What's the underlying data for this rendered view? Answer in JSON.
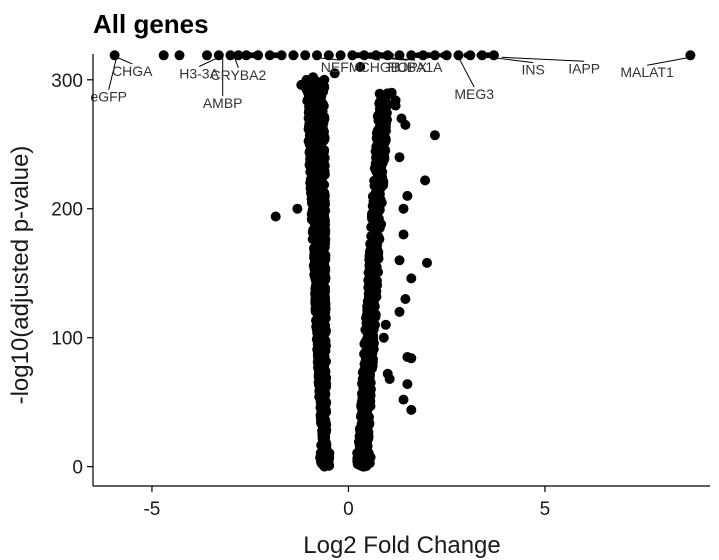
{
  "chart_data": {
    "type": "scatter",
    "title": "All genes",
    "xlabel": "Log2 Fold Change",
    "ylabel": "-log10(adjusted p-value)",
    "xlim": [
      -6.5,
      9.2
    ],
    "ylim": [
      -15,
      320
    ],
    "xticks": [
      -5,
      0,
      5
    ],
    "yticks": [
      0,
      100,
      200,
      300
    ],
    "grid": false,
    "point_color": "#000000",
    "cap_value": 319,
    "labeled_genes": [
      {
        "gene": "eGFP",
        "x": -5.9,
        "y": 319,
        "label_x": -6.1,
        "label_y": 283
      },
      {
        "gene": "CHGA",
        "x": -5.9,
        "y": 319,
        "label_x": -5.5,
        "label_y": 303
      },
      {
        "gene": "H3-3A",
        "x": -3.3,
        "y": 319,
        "label_x": -3.8,
        "label_y": 301
      },
      {
        "gene": "AMBP",
        "x": -3.2,
        "y": 319,
        "label_x": -3.2,
        "label_y": 278
      },
      {
        "gene": "CRYBA2",
        "x": -2.9,
        "y": 319,
        "label_x": -2.8,
        "label_y": 300
      },
      {
        "gene": "NEFM",
        "x": -0.9,
        "y": 319,
        "label_x": -0.2,
        "label_y": 306
      },
      {
        "gene": "CHGB",
        "x": 0.4,
        "y": 319,
        "label_x": 0.8,
        "label_y": 306
      },
      {
        "gene": "HOPX",
        "x": 0.6,
        "y": 319,
        "label_x": 1.5,
        "label_y": 306
      },
      {
        "gene": "TUBA1A",
        "x": 0.9,
        "y": 319,
        "label_x": 1.7,
        "label_y": 306
      },
      {
        "gene": "MEG3",
        "x": 2.8,
        "y": 319,
        "label_x": 3.2,
        "label_y": 285
      },
      {
        "gene": "INS",
        "x": 3.6,
        "y": 319,
        "label_x": 4.7,
        "label_y": 304
      },
      {
        "gene": "IAPP",
        "x": 3.9,
        "y": 319,
        "label_x": 6.0,
        "label_y": 305
      },
      {
        "gene": "MALAT1",
        "x": 8.7,
        "y": 319,
        "label_x": 7.6,
        "label_y": 302
      }
    ],
    "outliers": [
      [
        -1.85,
        194
      ],
      [
        -1.3,
        200
      ],
      [
        -1.2,
        296
      ],
      [
        -1.0,
        279
      ],
      [
        -0.9,
        302
      ],
      [
        1.95,
        222
      ],
      [
        2.2,
        257
      ],
      [
        1.2,
        284
      ],
      [
        1.35,
        270
      ],
      [
        1.45,
        265
      ],
      [
        1.3,
        240
      ],
      [
        1.5,
        210
      ],
      [
        1.4,
        200
      ],
      [
        1.4,
        180
      ],
      [
        1.3,
        160
      ],
      [
        2.0,
        158
      ],
      [
        1.6,
        146
      ],
      [
        1.45,
        130
      ],
      [
        1.3,
        120
      ],
      [
        1.5,
        85
      ],
      [
        1.6,
        84
      ],
      [
        1.5,
        64
      ],
      [
        1.6,
        44
      ],
      [
        1.4,
        52
      ],
      [
        1.0,
        72
      ],
      [
        1.05,
        68
      ],
      [
        0.9,
        100
      ],
      [
        0.95,
        110
      ],
      [
        1.1,
        290
      ],
      [
        1.2,
        280
      ],
      [
        0.3,
        310
      ],
      [
        -0.35,
        305
      ]
    ],
    "cap_points_x": [
      -5.95,
      -4.7,
      -4.3,
      -3.6,
      -3.3,
      -3.0,
      -2.8,
      -2.6,
      -2.3,
      -2.0,
      -1.7,
      -1.4,
      -1.1,
      -0.8,
      -0.5,
      -0.2,
      0.1,
      0.4,
      0.7,
      1.0,
      1.3,
      1.6,
      1.9,
      2.2,
      2.5,
      2.8,
      3.1,
      3.4,
      3.7,
      8.7
    ],
    "left_cloud": {
      "x_inner": -0.45,
      "x_outer": -1.1,
      "y_max": 300,
      "count": 900
    },
    "right_cloud": {
      "x_inner": 0.25,
      "x_outer": 1.05,
      "y_max": 290,
      "count": 550
    }
  }
}
